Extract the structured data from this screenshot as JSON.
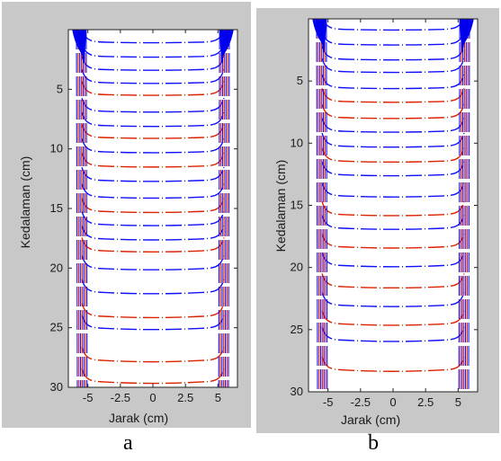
{
  "captions": {
    "a": "a",
    "b": "b"
  },
  "chart_data": [
    {
      "type": "line",
      "panel": "a",
      "xlabel": "Jarak (cm)",
      "ylabel": "Kedalaman (cm)",
      "xlim": [
        -6.5,
        6.5
      ],
      "ylim": [
        30,
        0
      ],
      "x_ticks": [
        -5,
        -2.5,
        0,
        2.5,
        5
      ],
      "x_tick_labels": [
        "-5",
        "-2.5",
        "0",
        "2.5",
        "5"
      ],
      "y_ticks": [
        5,
        10,
        15,
        20,
        25,
        30
      ],
      "y_tick_labels": [
        "5",
        "10",
        "15",
        "20",
        "25",
        "30"
      ],
      "x_wall": 5.6,
      "contours": [
        {
          "depth": 1.0,
          "color": "#1010ff"
        },
        {
          "depth": 2.2,
          "color": "#1010ff"
        },
        {
          "depth": 3.3,
          "color": "#1010ff"
        },
        {
          "depth": 4.4,
          "color": "#1010ff"
        },
        {
          "depth": 5.4,
          "color": "#dd2200"
        },
        {
          "depth": 6.8,
          "color": "#1010ff"
        },
        {
          "depth": 8.0,
          "color": "#1010ff"
        },
        {
          "depth": 9.0,
          "color": "#dd2200"
        },
        {
          "depth": 10.2,
          "color": "#1010ff"
        },
        {
          "depth": 11.4,
          "color": "#dd2200"
        },
        {
          "depth": 12.6,
          "color": "#1010ff"
        },
        {
          "depth": 14.0,
          "color": "#1010ff"
        },
        {
          "depth": 15.2,
          "color": "#dd2200"
        },
        {
          "depth": 16.3,
          "color": "#1010ff"
        },
        {
          "depth": 17.5,
          "color": "#1010ff"
        },
        {
          "depth": 18.5,
          "color": "#dd2200"
        },
        {
          "depth": 20.0,
          "color": "#1010ff"
        },
        {
          "depth": 22.0,
          "color": "#1010ff"
        },
        {
          "depth": 24.0,
          "color": "#dd2200"
        },
        {
          "depth": 25.0,
          "color": "#1010ff"
        },
        {
          "depth": 27.7,
          "color": "#dd2200"
        },
        {
          "depth": 29.5,
          "color": "#dd2200"
        }
      ]
    },
    {
      "type": "line",
      "panel": "b",
      "xlabel": "Jarak (cm)",
      "ylabel": "Kedalaman (cm)",
      "xlim": [
        -6.5,
        6.5
      ],
      "ylim": [
        30,
        0
      ],
      "x_ticks": [
        -5,
        -2.5,
        0,
        2.5,
        5
      ],
      "x_tick_labels": [
        "-5",
        "-2.5",
        "0",
        "2.5",
        "5"
      ],
      "y_ticks": [
        5,
        10,
        15,
        20,
        25,
        30
      ],
      "y_tick_labels": [
        "5",
        "10",
        "15",
        "20",
        "25",
        "30"
      ],
      "x_wall": 5.6,
      "contours": [
        {
          "depth": 0.8,
          "color": "#1010ff"
        },
        {
          "depth": 2.0,
          "color": "#1010ff"
        },
        {
          "depth": 3.2,
          "color": "#1010ff"
        },
        {
          "depth": 4.2,
          "color": "#1010ff"
        },
        {
          "depth": 5.5,
          "color": "#1010ff"
        },
        {
          "depth": 6.6,
          "color": "#dd2200"
        },
        {
          "depth": 7.9,
          "color": "#dd2200"
        },
        {
          "depth": 9.0,
          "color": "#1010ff"
        },
        {
          "depth": 10.2,
          "color": "#1010ff"
        },
        {
          "depth": 11.4,
          "color": "#dd2200"
        },
        {
          "depth": 12.5,
          "color": "#1010ff"
        },
        {
          "depth": 14.2,
          "color": "#1010ff"
        },
        {
          "depth": 15.7,
          "color": "#dd2200"
        },
        {
          "depth": 16.8,
          "color": "#1010ff"
        },
        {
          "depth": 18.3,
          "color": "#dd2200"
        },
        {
          "depth": 19.8,
          "color": "#1010ff"
        },
        {
          "depth": 21.5,
          "color": "#dd2200"
        },
        {
          "depth": 23.0,
          "color": "#1010ff"
        },
        {
          "depth": 24.5,
          "color": "#dd2200"
        },
        {
          "depth": 25.8,
          "color": "#1010ff"
        },
        {
          "depth": 28.2,
          "color": "#dd2200"
        }
      ]
    }
  ]
}
